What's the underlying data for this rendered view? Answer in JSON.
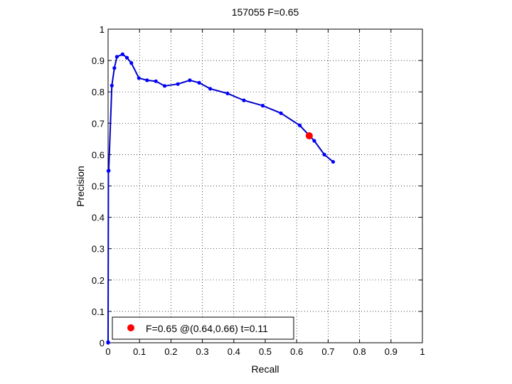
{
  "chart_data": {
    "type": "line",
    "title": "157055 F=0.65",
    "xlabel": "Recall",
    "ylabel": "Precision",
    "xlim": [
      0,
      1
    ],
    "ylim": [
      0,
      1
    ],
    "xticks": [
      "0",
      "0.1",
      "0.2",
      "0.3",
      "0.4",
      "0.5",
      "0.6",
      "0.7",
      "0.8",
      "0.9",
      "1"
    ],
    "yticks": [
      "0",
      "0.1",
      "0.2",
      "0.3",
      "0.4",
      "0.5",
      "0.6",
      "0.7",
      "0.8",
      "0.9",
      "1"
    ],
    "grid": true,
    "legend_position": "bottom-left",
    "series_color": "#0000cc",
    "marker_color": "#0000ff",
    "highlight_color": "#ff0000",
    "series": [
      {
        "x": [
          0.0,
          0.0,
          0.001,
          0.002,
          0.012,
          0.02,
          0.028,
          0.046,
          0.06,
          0.074,
          0.098,
          0.124,
          0.152,
          0.18,
          0.222,
          0.26,
          0.29,
          0.325,
          0.38,
          0.432,
          0.492,
          0.55,
          0.61,
          0.656,
          0.688,
          0.716
        ],
        "y": [
          0.0,
          0.002,
          0.548,
          0.549,
          0.82,
          0.876,
          0.912,
          0.92,
          0.909,
          0.892,
          0.844,
          0.837,
          0.834,
          0.819,
          0.825,
          0.837,
          0.829,
          0.81,
          0.795,
          0.773,
          0.756,
          0.732,
          0.693,
          0.644,
          0.6,
          0.577
        ]
      }
    ],
    "highlight_point": {
      "x": 0.64,
      "y": 0.66
    },
    "legend_text": "F=0.65 @(0.64,0.66) t=0.11"
  }
}
